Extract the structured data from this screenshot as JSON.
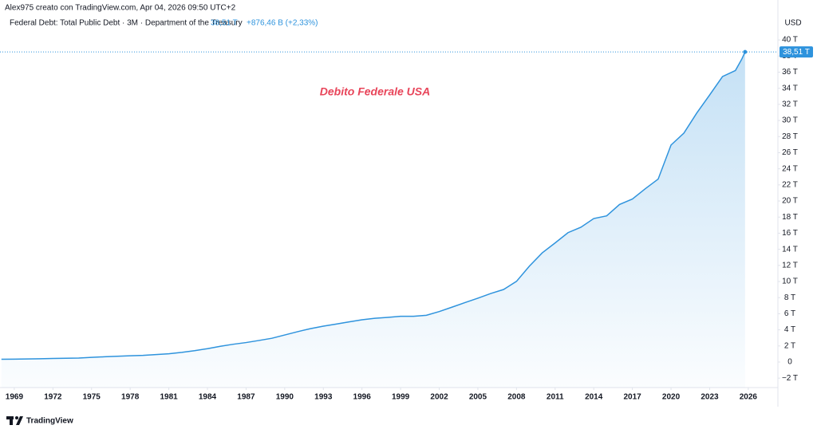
{
  "chart_data": {
    "type": "area",
    "credit": "Alex975 creato con TradingView.com, Apr 04, 2026 09:50 UTC+2",
    "legend_title": "Federal Debt: Total Public Debt · 3M · Department of the Treasury",
    "legend_value": "38,51 T",
    "legend_change": "+876,46 B (+2,33%)",
    "currency": "USD",
    "annotation": "Debito Federale USA",
    "last_value_label": "38,51 T",
    "brand": "TradingView",
    "color": "#2e93dd",
    "annotation_color": "#e8455a",
    "grid": false,
    "x": [
      1968,
      1969,
      1970,
      1971,
      1972,
      1973,
      1974,
      1975,
      1976,
      1977,
      1978,
      1979,
      1980,
      1981,
      1982,
      1983,
      1984,
      1985,
      1986,
      1987,
      1988,
      1989,
      1990,
      1991,
      1992,
      1993,
      1994,
      1995,
      1996,
      1997,
      1998,
      1999,
      2000,
      2001,
      2002,
      2003,
      2004,
      2005,
      2006,
      2007,
      2008,
      2009,
      2010,
      2011,
      2012,
      2013,
      2014,
      2015,
      2016,
      2017,
      2018,
      2019,
      2020,
      2021,
      2022,
      2023,
      2024,
      2025,
      2025.5,
      2025.75
    ],
    "values": [
      0.35,
      0.36,
      0.38,
      0.41,
      0.44,
      0.47,
      0.49,
      0.58,
      0.65,
      0.72,
      0.78,
      0.83,
      0.93,
      1.03,
      1.2,
      1.41,
      1.66,
      1.95,
      2.21,
      2.42,
      2.68,
      2.95,
      3.36,
      3.77,
      4.15,
      4.46,
      4.72,
      4.99,
      5.25,
      5.43,
      5.55,
      5.68,
      5.68,
      5.81,
      6.27,
      6.82,
      7.38,
      7.93,
      8.51,
      9.01,
      10.02,
      11.91,
      13.56,
      14.79,
      16.07,
      16.74,
      17.82,
      18.15,
      19.57,
      20.24,
      21.52,
      22.72,
      26.95,
      28.43,
      30.93,
      33.17,
      35.46,
      36.21,
      37.64,
      38.51
    ],
    "xlim": [
      1968.2,
      2028.3
    ],
    "xticks": [
      1969,
      1972,
      1975,
      1978,
      1981,
      1984,
      1987,
      1990,
      1993,
      1996,
      1999,
      2002,
      2005,
      2008,
      2011,
      2014,
      2017,
      2020,
      2023,
      2026
    ],
    "ylim": [
      -3.17,
      41
    ],
    "yticks": [
      {
        "value": -2,
        "label": "−2 T"
      },
      0,
      {
        "value": 2,
        "label": "2 T"
      },
      {
        "value": 4,
        "label": "4 T"
      },
      {
        "value": 6,
        "label": "6 T"
      },
      {
        "value": 8,
        "label": "8 T"
      },
      {
        "value": 10,
        "label": "10 T"
      },
      {
        "value": 12,
        "label": "12 T"
      },
      {
        "value": 14,
        "label": "14 T"
      },
      {
        "value": 16,
        "label": "16 T"
      },
      {
        "value": 18,
        "label": "18 T"
      },
      {
        "value": 20,
        "label": "20 T"
      },
      {
        "value": 22,
        "label": "22 T"
      },
      {
        "value": 24,
        "label": "24 T"
      },
      {
        "value": 26,
        "label": "26 T"
      },
      {
        "value": 28,
        "label": "28 T"
      },
      {
        "value": 30,
        "label": "30 T"
      },
      {
        "value": 32,
        "label": "32 T"
      },
      {
        "value": 34,
        "label": "34 T"
      },
      {
        "value": 36,
        "label": "36 T"
      },
      {
        "value": 38,
        "label": "38 T"
      },
      {
        "value": 40,
        "label": "40 T"
      }
    ]
  }
}
